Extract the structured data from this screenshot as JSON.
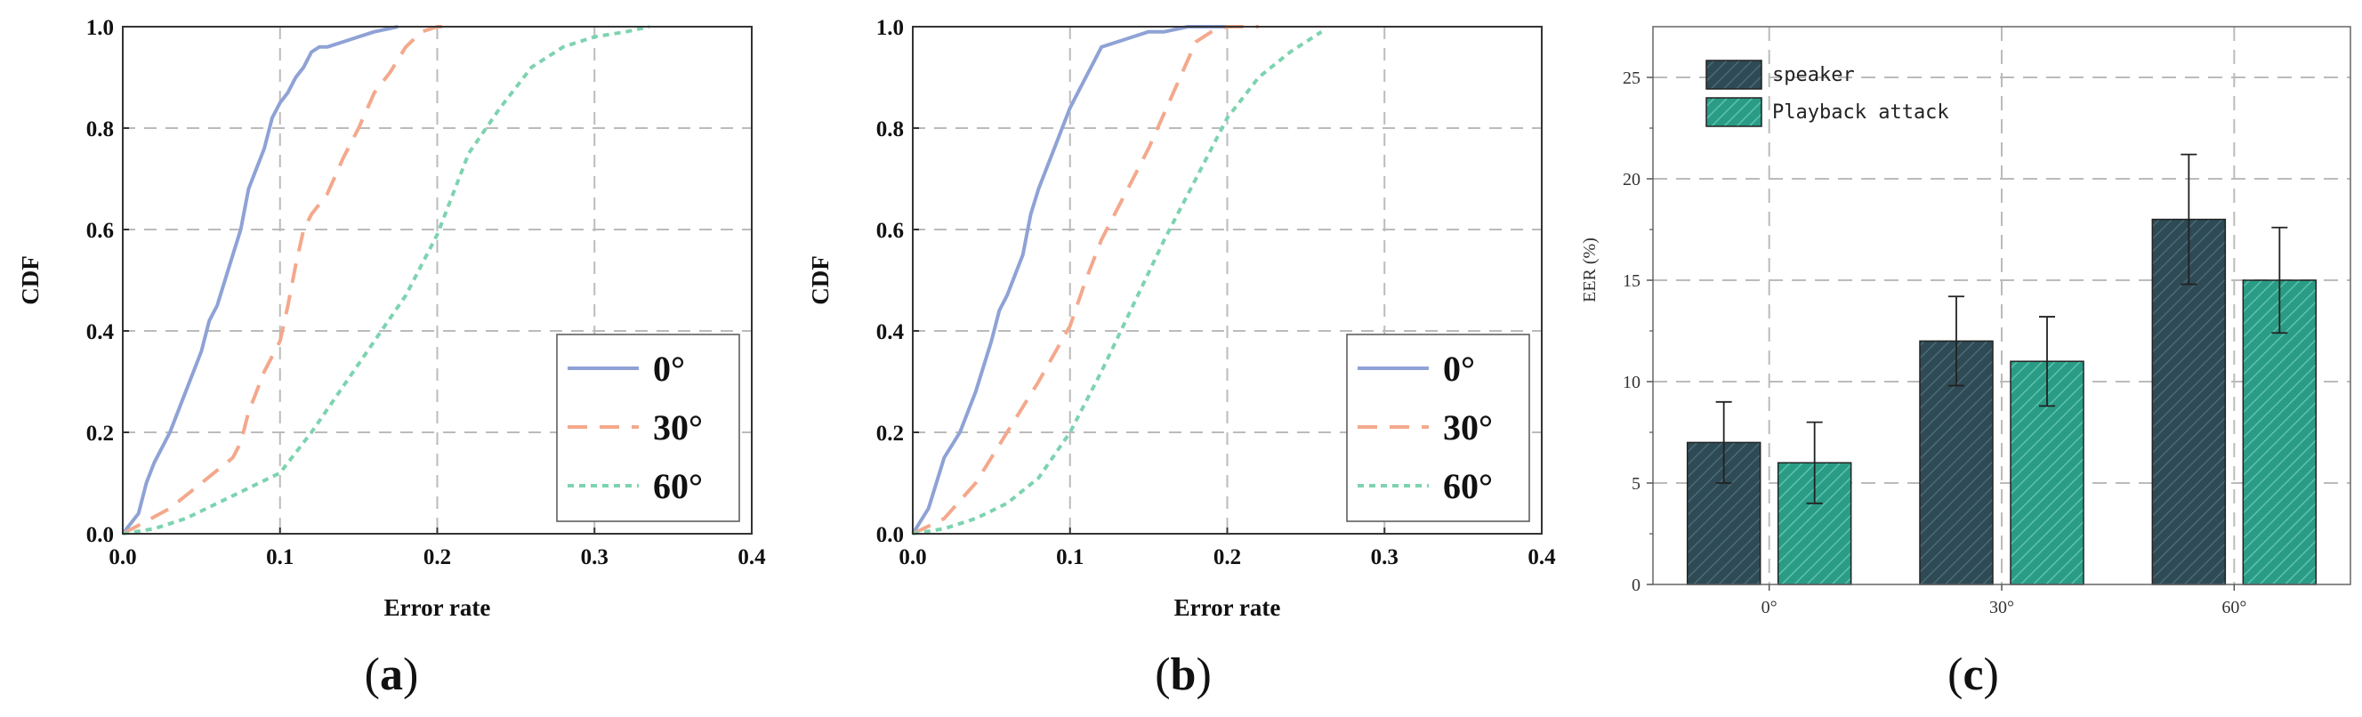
{
  "figure": {
    "panels": [
      {
        "id": "a",
        "caption": "(a)",
        "caption_letter": "a",
        "chart_type": "line"
      },
      {
        "id": "b",
        "caption": "(b)",
        "caption_letter": "b",
        "chart_type": "line"
      },
      {
        "id": "c",
        "caption": "(c)",
        "caption_letter": "c",
        "chart_type": "bar"
      }
    ]
  },
  "chart_data": [
    {
      "type": "line",
      "title": "",
      "xlabel": "Error rate",
      "ylabel": "CDF",
      "xlim": [
        0.0,
        0.4
      ],
      "ylim": [
        0.0,
        1.0
      ],
      "xticks": [
        "0.0",
        "0.1",
        "0.2",
        "0.3",
        "0.4"
      ],
      "yticks": [
        "0.0",
        "0.2",
        "0.4",
        "0.6",
        "0.8",
        "1.0"
      ],
      "grid": true,
      "legend_position": "lower-right",
      "series": [
        {
          "name": "0°",
          "color": "#8FA2D6",
          "dash": "solid",
          "x": [
            0.0,
            0.01,
            0.015,
            0.02,
            0.03,
            0.04,
            0.05,
            0.055,
            0.06,
            0.07,
            0.075,
            0.08,
            0.085,
            0.09,
            0.095,
            0.1,
            0.105,
            0.11,
            0.115,
            0.12,
            0.125,
            0.13,
            0.14,
            0.15,
            0.16,
            0.175
          ],
          "y": [
            0.0,
            0.04,
            0.1,
            0.14,
            0.2,
            0.28,
            0.36,
            0.42,
            0.45,
            0.55,
            0.6,
            0.68,
            0.72,
            0.76,
            0.82,
            0.85,
            0.87,
            0.9,
            0.92,
            0.95,
            0.96,
            0.96,
            0.97,
            0.98,
            0.99,
            1.0
          ]
        },
        {
          "name": "30°",
          "color": "#F4A88C",
          "dash": "dashed",
          "x": [
            0.0,
            0.03,
            0.05,
            0.07,
            0.075,
            0.08,
            0.09,
            0.1,
            0.105,
            0.11,
            0.115,
            0.12,
            0.13,
            0.14,
            0.15,
            0.16,
            0.17,
            0.18,
            0.19,
            0.2,
            0.21
          ],
          "y": [
            0.0,
            0.05,
            0.1,
            0.15,
            0.18,
            0.24,
            0.32,
            0.38,
            0.45,
            0.53,
            0.6,
            0.63,
            0.67,
            0.74,
            0.8,
            0.87,
            0.91,
            0.96,
            0.99,
            1.0,
            1.0
          ]
        },
        {
          "name": "60°",
          "color": "#7DD3B0",
          "dash": "dotted",
          "x": [
            0.0,
            0.02,
            0.04,
            0.06,
            0.08,
            0.1,
            0.12,
            0.14,
            0.16,
            0.18,
            0.2,
            0.22,
            0.24,
            0.26,
            0.28,
            0.3,
            0.32,
            0.335
          ],
          "y": [
            0.0,
            0.01,
            0.03,
            0.06,
            0.09,
            0.12,
            0.2,
            0.29,
            0.38,
            0.47,
            0.59,
            0.75,
            0.84,
            0.92,
            0.96,
            0.98,
            0.99,
            1.0
          ]
        }
      ]
    },
    {
      "type": "line",
      "title": "",
      "xlabel": "Error rate",
      "ylabel": "CDF",
      "xlim": [
        0.0,
        0.4
      ],
      "ylim": [
        0.0,
        1.0
      ],
      "xticks": [
        "0.0",
        "0.1",
        "0.2",
        "0.3",
        "0.4"
      ],
      "yticks": [
        "0.0",
        "0.2",
        "0.4",
        "0.6",
        "0.8",
        "1.0"
      ],
      "grid": true,
      "legend_position": "lower-right",
      "series": [
        {
          "name": "0°",
          "color": "#8FA2D6",
          "dash": "solid",
          "x": [
            0.0,
            0.01,
            0.015,
            0.02,
            0.03,
            0.04,
            0.05,
            0.055,
            0.06,
            0.07,
            0.075,
            0.08,
            0.085,
            0.09,
            0.095,
            0.1,
            0.105,
            0.11,
            0.115,
            0.12,
            0.13,
            0.14,
            0.15,
            0.16,
            0.175,
            0.2
          ],
          "y": [
            0.0,
            0.05,
            0.1,
            0.15,
            0.2,
            0.28,
            0.38,
            0.44,
            0.47,
            0.55,
            0.63,
            0.68,
            0.72,
            0.76,
            0.8,
            0.84,
            0.87,
            0.9,
            0.93,
            0.96,
            0.97,
            0.98,
            0.99,
            0.99,
            1.0,
            1.0
          ]
        },
        {
          "name": "30°",
          "color": "#F4A88C",
          "dash": "dashed",
          "x": [
            0.0,
            0.02,
            0.04,
            0.06,
            0.08,
            0.1,
            0.11,
            0.12,
            0.13,
            0.14,
            0.15,
            0.16,
            0.17,
            0.18,
            0.19,
            0.2,
            0.22
          ],
          "y": [
            0.0,
            0.03,
            0.1,
            0.2,
            0.3,
            0.41,
            0.5,
            0.58,
            0.64,
            0.7,
            0.76,
            0.83,
            0.9,
            0.97,
            0.99,
            1.0,
            1.0
          ]
        },
        {
          "name": "60°",
          "color": "#7DD3B0",
          "dash": "dotted",
          "x": [
            0.0,
            0.02,
            0.04,
            0.06,
            0.08,
            0.1,
            0.12,
            0.14,
            0.16,
            0.18,
            0.2,
            0.22,
            0.24,
            0.25,
            0.26
          ],
          "y": [
            0.0,
            0.01,
            0.03,
            0.06,
            0.11,
            0.2,
            0.32,
            0.45,
            0.58,
            0.7,
            0.82,
            0.9,
            0.95,
            0.97,
            0.99
          ]
        }
      ]
    },
    {
      "type": "bar",
      "title": "",
      "xlabel": "",
      "ylabel": "EER (%)",
      "categories": [
        "0°",
        "30°",
        "60°"
      ],
      "ylim": [
        0,
        27.5
      ],
      "yticks": [
        "0",
        "5",
        "10",
        "15",
        "20",
        "25"
      ],
      "grid": true,
      "legend_position": "top-left",
      "series": [
        {
          "name": "speaker",
          "color": "#2E4A55",
          "values": [
            7,
            12,
            18
          ],
          "errors": [
            2,
            2.2,
            3.2
          ]
        },
        {
          "name": "Playback attack",
          "color": "#2A9C86",
          "values": [
            6,
            11,
            15
          ],
          "errors": [
            2,
            2.2,
            2.6
          ]
        }
      ]
    }
  ]
}
